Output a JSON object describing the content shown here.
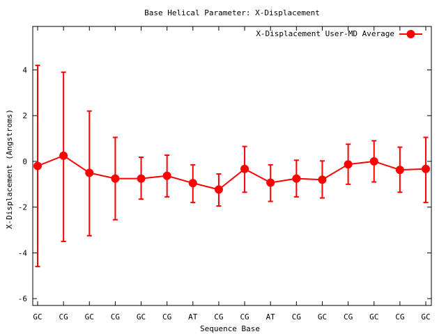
{
  "chart_data": {
    "type": "line",
    "title": "Base  Helical Parameter: X-Displacement",
    "xlabel": "Sequence Base",
    "ylabel": "X-Displacement (Angstroms)",
    "categories": [
      "GC",
      "CG",
      "GC",
      "CG",
      "GC",
      "CG",
      "AT",
      "CG",
      "CG",
      "AT",
      "CG",
      "GC",
      "CG",
      "GC",
      "CG",
      "GC"
    ],
    "ylim": [
      -6.3,
      5.9
    ],
    "yticks": [
      -6,
      -4,
      -2,
      0,
      2,
      4
    ],
    "grid": false,
    "legend_position": "top-right",
    "series": [
      {
        "name": "X-Displacement User-MD Average",
        "color": "#ff0000",
        "marker": "circle",
        "values": [
          -0.2,
          0.25,
          -0.5,
          -0.75,
          -0.75,
          -0.63,
          -0.95,
          -1.23,
          -0.33,
          -0.93,
          -0.75,
          -0.8,
          -0.13,
          0.0,
          -0.37,
          -0.33
        ],
        "error_low": [
          -4.6,
          -3.5,
          -3.25,
          -2.55,
          -1.65,
          -1.55,
          -1.8,
          -1.95,
          -1.35,
          -1.75,
          -1.55,
          -1.6,
          -1.0,
          -0.9,
          -1.35,
          -1.8
        ],
        "error_high": [
          4.2,
          3.9,
          2.2,
          1.05,
          0.18,
          0.27,
          -0.15,
          -0.55,
          0.65,
          -0.15,
          0.05,
          0.02,
          0.75,
          0.9,
          0.62,
          1.05
        ]
      }
    ]
  }
}
